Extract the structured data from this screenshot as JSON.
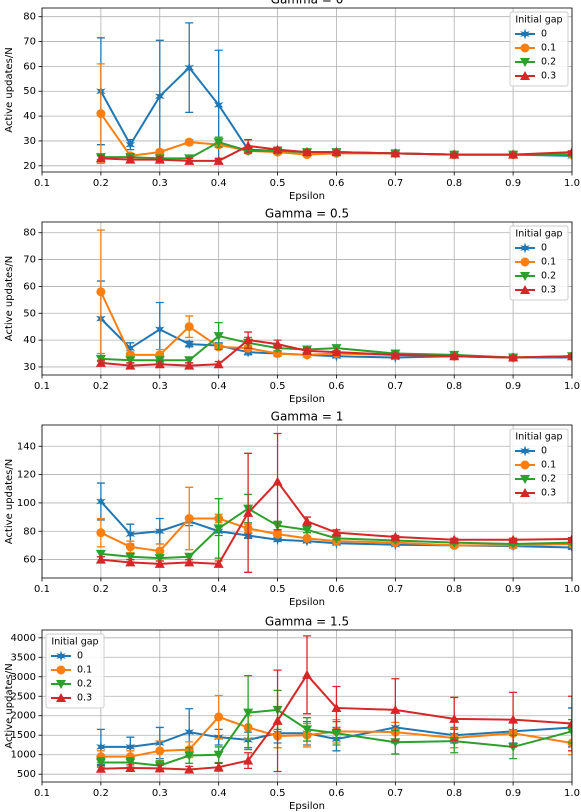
{
  "chart_data": [
    {
      "type": "line",
      "title": "Gamma = 0",
      "xlabel": "Epsilon",
      "ylabel": "Active updates/N",
      "x": [
        0.2,
        0.25,
        0.3,
        0.35,
        0.4,
        0.45,
        0.5,
        0.55,
        0.6,
        0.7,
        0.8,
        0.9,
        1.0
      ],
      "xlim": [
        0.1,
        1.0
      ],
      "xticks": [
        0.1,
        0.2,
        0.3,
        0.4,
        0.5,
        0.6,
        0.7,
        0.8,
        0.9,
        {
          "value": 1,
          "label": "1.0"
        }
      ],
      "ylim": [
        17.5,
        83.5
      ],
      "yticks": [
        20,
        30,
        40,
        50,
        60,
        70,
        80
      ],
      "grid": true,
      "legend": "upper right",
      "legend_title": "Initial gap",
      "series": [
        {
          "name": "0",
          "color": "#1f77b4",
          "marker": "star",
          "values": [
            50,
            28.5,
            48,
            59.5,
            44.5,
            26.5,
            26,
            25.5,
            25.5,
            25,
            24.5,
            24.5,
            24
          ],
          "errors": [
            21.5,
            2,
            22.5,
            18,
            22,
            1,
            1,
            1,
            1,
            0.5,
            0.5,
            0.5,
            0.5
          ]
        },
        {
          "name": "0.1",
          "color": "#ff7f0e",
          "marker": "circle",
          "values": [
            41,
            24,
            25.5,
            29.5,
            28.5,
            26,
            25.5,
            24.5,
            25,
            25,
            24.5,
            24.5,
            24.5
          ],
          "errors": [
            20,
            1,
            1,
            1,
            1,
            1,
            1,
            0.5,
            0.5,
            0.5,
            0.5,
            0.5,
            0.5
          ]
        },
        {
          "name": "0.2",
          "color": "#2ca02c",
          "marker": "down",
          "values": [
            23.5,
            23.5,
            23,
            23,
            29.5,
            26,
            26,
            25.5,
            25.5,
            25,
            24.5,
            24.5,
            24.5
          ],
          "errors": [
            1,
            1,
            1,
            1,
            2,
            1,
            1,
            0.5,
            0.5,
            0.5,
            0.5,
            0.5,
            0.5
          ]
        },
        {
          "name": "0.3",
          "color": "#d62728",
          "marker": "up",
          "values": [
            23,
            22.5,
            22.5,
            22,
            22,
            28,
            26.5,
            25.5,
            25.5,
            25,
            24.5,
            24.5,
            25.5
          ],
          "errors": [
            1,
            1,
            1,
            1,
            1,
            2.5,
            1,
            0.5,
            0.5,
            0.5,
            0.5,
            0.5,
            0.5
          ]
        }
      ]
    },
    {
      "type": "line",
      "title": "Gamma = 0.5",
      "xlabel": "Epsilon",
      "ylabel": "Active updates/N",
      "x": [
        0.2,
        0.25,
        0.3,
        0.35,
        0.4,
        0.45,
        0.5,
        0.55,
        0.6,
        0.7,
        0.8,
        0.9,
        1.0
      ],
      "xlim": [
        0.1,
        1.0
      ],
      "xticks": [
        0.1,
        0.2,
        0.3,
        0.4,
        0.5,
        0.6,
        0.7,
        0.8,
        0.9,
        {
          "value": 1,
          "label": "1.0"
        }
      ],
      "ylim": [
        27,
        84
      ],
      "yticks": [
        30,
        40,
        50,
        60,
        70,
        80
      ],
      "grid": true,
      "legend": "upper right",
      "legend_title": "Initial gap",
      "series": [
        {
          "name": "0",
          "color": "#1f77b4",
          "marker": "star",
          "values": [
            48,
            37,
            44,
            38.5,
            38,
            35.5,
            35,
            34.5,
            34,
            33.5,
            34,
            33.5,
            33.5
          ],
          "errors": [
            14,
            2,
            10,
            1,
            1,
            1,
            1,
            0.5,
            0.5,
            0.5,
            0.5,
            0.5,
            0.5
          ]
        },
        {
          "name": "0.1",
          "color": "#ff7f0e",
          "marker": "circle",
          "values": [
            58,
            34.5,
            34.5,
            45,
            37.5,
            37,
            35,
            34.5,
            35,
            34.5,
            34,
            33.5,
            34
          ],
          "errors": [
            23,
            1,
            2,
            4,
            1,
            1,
            1,
            0.5,
            0.5,
            0.5,
            0.5,
            0.5,
            0.5
          ]
        },
        {
          "name": "0.2",
          "color": "#2ca02c",
          "marker": "down",
          "values": [
            33,
            32.5,
            32.5,
            32.5,
            41.5,
            39,
            37,
            36.5,
            37,
            35,
            34.5,
            33.5,
            34
          ],
          "errors": [
            1,
            1,
            1,
            1,
            5,
            2,
            1,
            1,
            1,
            0.5,
            0.5,
            0.5,
            0.5
          ]
        },
        {
          "name": "0.3",
          "color": "#d62728",
          "marker": "up",
          "values": [
            31.5,
            30.5,
            31,
            30.5,
            31,
            40,
            38.5,
            36,
            35.5,
            34.5,
            34,
            33.5,
            34
          ],
          "errors": [
            1,
            1,
            1,
            1,
            1,
            3,
            1.5,
            1,
            0.5,
            0.5,
            0.5,
            0.5,
            0.5
          ]
        }
      ]
    },
    {
      "type": "line",
      "title": "Gamma = 1",
      "xlabel": "Epsilon",
      "ylabel": "Active updates/N",
      "x": [
        0.2,
        0.25,
        0.3,
        0.35,
        0.4,
        0.45,
        0.5,
        0.55,
        0.6,
        0.7,
        0.8,
        0.9,
        1.0
      ],
      "xlim": [
        0.1,
        1.0
      ],
      "xticks": [
        0.1,
        0.2,
        0.3,
        0.4,
        0.5,
        0.6,
        0.7,
        0.8,
        0.9,
        {
          "value": 1,
          "label": "1.0"
        }
      ],
      "ylim": [
        47,
        155
      ],
      "yticks": [
        60,
        80,
        100,
        120,
        140
      ],
      "grid": true,
      "legend": "upper right",
      "legend_title": "Initial gap",
      "series": [
        {
          "name": "0",
          "color": "#1f77b4",
          "marker": "star",
          "values": [
            101,
            78,
            80,
            87,
            80,
            77,
            74,
            73,
            71.5,
            70.5,
            70,
            69.5,
            68.5
          ],
          "errors": [
            13,
            7,
            9,
            3,
            3,
            2,
            1,
            1,
            1,
            1,
            1,
            1,
            1
          ]
        },
        {
          "name": "0.1",
          "color": "#ff7f0e",
          "marker": "circle",
          "values": [
            79,
            69,
            66,
            89,
            89,
            82,
            78,
            75,
            73,
            72,
            70,
            70,
            71
          ],
          "errors": [
            10,
            4,
            5,
            22,
            3,
            3,
            2,
            1,
            1,
            1,
            1,
            1,
            1
          ]
        },
        {
          "name": "0.2",
          "color": "#2ca02c",
          "marker": "down",
          "values": [
            64,
            62,
            61,
            62,
            82,
            96,
            84,
            81,
            75,
            73.5,
            72,
            71,
            72
          ],
          "errors": [
            2,
            2,
            2,
            2,
            21,
            10,
            3,
            2,
            1,
            1,
            1,
            1,
            1
          ]
        },
        {
          "name": "0.3",
          "color": "#d62728",
          "marker": "up",
          "values": [
            60,
            58,
            57,
            58,
            57,
            93,
            115,
            87,
            79,
            76,
            74,
            74,
            74.5
          ],
          "errors": [
            2,
            2,
            2,
            2,
            2,
            42,
            34,
            3,
            2,
            1,
            1,
            1,
            1
          ]
        }
      ]
    },
    {
      "type": "line",
      "title": "Gamma = 1.5",
      "xlabel": "Epsilon",
      "ylabel": "Active updates/N",
      "x": [
        0.2,
        0.25,
        0.3,
        0.35,
        0.4,
        0.45,
        0.5,
        0.55,
        0.6,
        0.7,
        0.8,
        0.9,
        1.0
      ],
      "xlim": [
        0.1,
        1.0
      ],
      "xticks": [
        0.1,
        0.2,
        0.3,
        0.4,
        0.5,
        0.6,
        0.7,
        0.8,
        0.9,
        {
          "value": 1,
          "label": "1.0"
        }
      ],
      "ylim": [
        300,
        4200
      ],
      "yticks": [
        500,
        1000,
        1500,
        2000,
        2500,
        3000,
        3500,
        4000
      ],
      "grid": true,
      "legend": "upper left",
      "legend_title": "Initial gap",
      "series": [
        {
          "name": "0",
          "color": "#1f77b4",
          "marker": "star",
          "values": [
            1200,
            1200,
            1300,
            1580,
            1450,
            1380,
            1550,
            1550,
            1400,
            1700,
            1500,
            1600,
            1700
          ],
          "errors": [
            450,
            250,
            400,
            600,
            200,
            200,
            250,
            300,
            300,
            400,
            200,
            300,
            500
          ]
        },
        {
          "name": "0.1",
          "color": "#ff7f0e",
          "marker": "circle",
          "values": [
            950,
            950,
            1100,
            1130,
            1970,
            1700,
            1480,
            1500,
            1600,
            1580,
            1430,
            1550,
            1300
          ],
          "errors": [
            150,
            150,
            250,
            200,
            550,
            300,
            300,
            300,
            300,
            250,
            250,
            300,
            300
          ]
        },
        {
          "name": "0.2",
          "color": "#2ca02c",
          "marker": "down",
          "values": [
            800,
            800,
            720,
            980,
            1000,
            2080,
            2150,
            1650,
            1550,
            1320,
            1350,
            1200,
            1600
          ],
          "errors": [
            120,
            120,
            120,
            200,
            200,
            950,
            500,
            300,
            300,
            300,
            300,
            300,
            300
          ]
        },
        {
          "name": "0.3",
          "color": "#d62728",
          "marker": "up",
          "values": [
            640,
            660,
            650,
            620,
            680,
            850,
            1870,
            3050,
            2200,
            2150,
            1920,
            1900,
            1800
          ],
          "errors": [
            80,
            80,
            80,
            80,
            100,
            200,
            1300,
            1000,
            550,
            800,
            550,
            700,
            700
          ]
        }
      ]
    }
  ]
}
